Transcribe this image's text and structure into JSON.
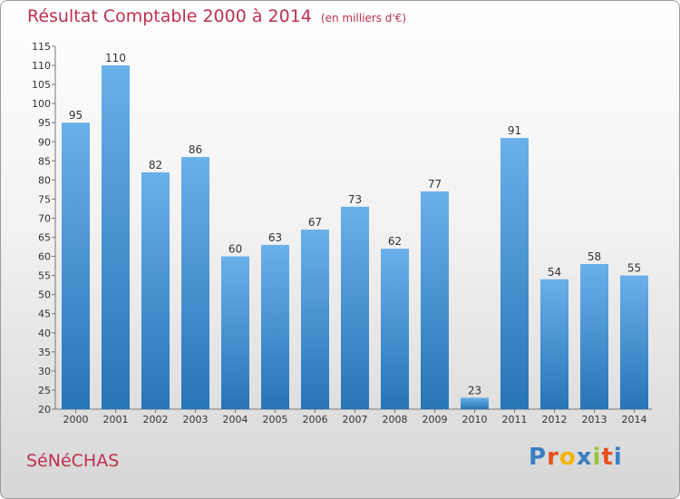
{
  "title": "Résultat Comptable 2000 à 2014",
  "unit_note": "(en milliers d'€)",
  "city": "SéNéCHAS",
  "logo": {
    "text": "Proxiti",
    "letters": [
      "P",
      "r",
      "o",
      "x",
      "i",
      "t",
      "i"
    ],
    "colors": [
      "#3a7fc1",
      "#e8501f",
      "#f4b400",
      "#3a7fc1",
      "#9ac43a",
      "#e8501f",
      "#3a7fc1"
    ]
  },
  "colors": {
    "title": "#c0304f",
    "bar_light": "#6ab0ea",
    "bar_dark": "#2774b6"
  },
  "chart_data": {
    "type": "bar",
    "title": "Résultat Comptable 2000 à 2014",
    "xlabel": "",
    "ylabel": "",
    "categories": [
      "2000",
      "2001",
      "2002",
      "2003",
      "2004",
      "2005",
      "2006",
      "2007",
      "2008",
      "2009",
      "2010",
      "2011",
      "2012",
      "2013",
      "2014"
    ],
    "values": [
      95,
      110,
      82,
      86,
      60,
      63,
      67,
      73,
      62,
      77,
      23,
      91,
      54,
      58,
      55
    ],
    "ylim": [
      20,
      115
    ],
    "yticks": [
      20,
      25,
      30,
      35,
      40,
      45,
      50,
      55,
      60,
      65,
      70,
      75,
      80,
      85,
      90,
      95,
      100,
      105,
      110,
      115
    ],
    "grid": false,
    "legend": "none"
  }
}
